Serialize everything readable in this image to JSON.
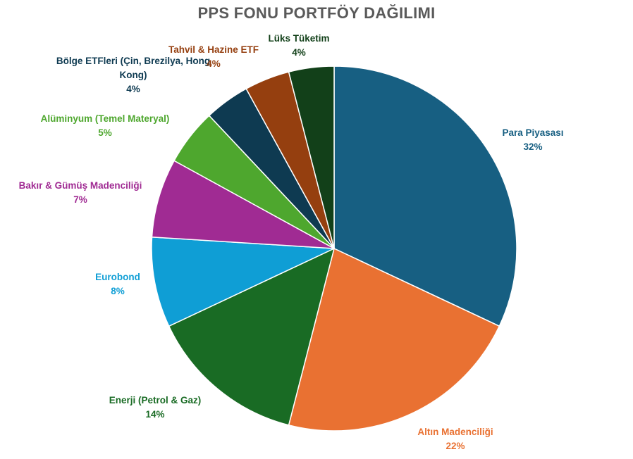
{
  "chart_data": {
    "type": "pie",
    "title": "PPS FONU PORTFÖY DAĞILIMI",
    "slices": [
      {
        "label": "Para Piyasası",
        "value": 32,
        "pct_label": "32%",
        "color": "#175f82"
      },
      {
        "label": "Altın Madenciliği",
        "value": 22,
        "pct_label": "22%",
        "color": "#e97132"
      },
      {
        "label": "Enerji (Petrol & Gaz)",
        "value": 14,
        "pct_label": "14%",
        "color": "#196b24"
      },
      {
        "label": "Eurobond",
        "value": 8,
        "pct_label": "8%",
        "color": "#0f9ed5"
      },
      {
        "label": "Bakır & Gümüş Madenciliği",
        "value": 7,
        "pct_label": "7%",
        "color": "#a02b93"
      },
      {
        "label": "Alüminyum (Temel Materyal)",
        "value": 5,
        "pct_label": "5%",
        "color": "#4ea72e"
      },
      {
        "label": "Bölge ETFleri (Çin, Brezilya, Hong Kong)",
        "value": 4,
        "pct_label": "4%",
        "color": "#0e3a51"
      },
      {
        "label": "Tahvil & Hazine ETF",
        "value": 4,
        "pct_label": "4%",
        "color": "#953f0f"
      },
      {
        "label": "Lüks Tüketim",
        "value": 4,
        "pct_label": "4%",
        "color": "#124019"
      }
    ]
  }
}
